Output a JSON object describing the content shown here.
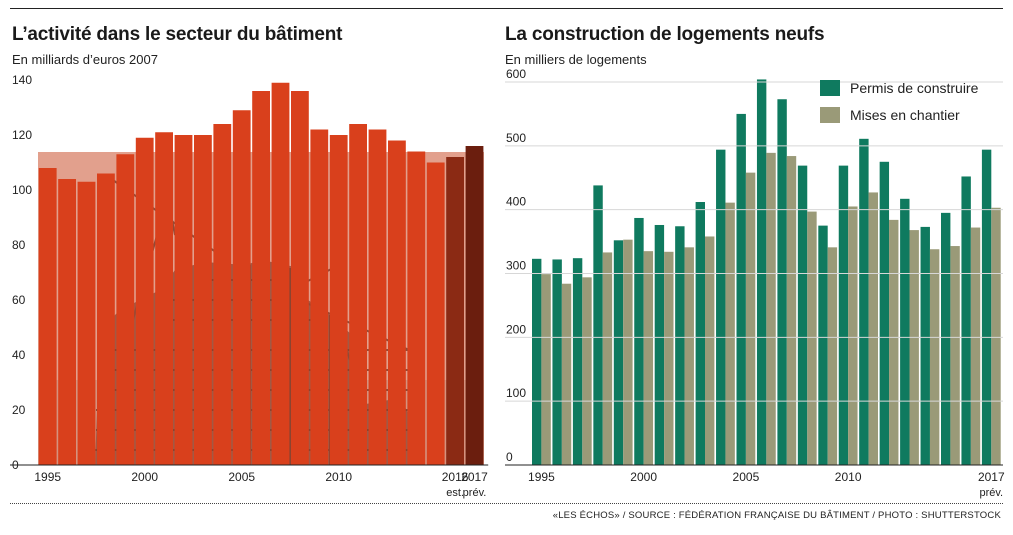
{
  "chart_data": [
    {
      "type": "bar",
      "title": "L’activité dans le secteur du bâtiment",
      "subtitle": "En milliards d’euros 2007",
      "x": [
        1995,
        1996,
        1997,
        1998,
        1999,
        2000,
        2001,
        2002,
        2003,
        2004,
        2005,
        2006,
        2007,
        2008,
        2009,
        2010,
        2011,
        2012,
        2013,
        2014,
        2015,
        2016,
        2017
      ],
      "values": [
        108,
        104,
        103,
        106,
        113,
        119,
        121,
        120,
        120,
        124,
        129,
        136,
        139,
        136,
        122,
        120,
        124,
        122,
        118,
        114,
        110,
        112,
        116
      ],
      "ylim": [
        0,
        140
      ],
      "yticks": [
        0,
        20,
        40,
        60,
        80,
        100,
        120,
        140
      ],
      "xtick_labels": [
        {
          "x": 1995,
          "label": "1995"
        },
        {
          "x": 2000,
          "label": "2000"
        },
        {
          "x": 2005,
          "label": "2005"
        },
        {
          "x": 2010,
          "label": "2010"
        },
        {
          "x": 2016,
          "label": "2016",
          "sub": "est."
        },
        {
          "x": 2017,
          "label": "2017",
          "sub": "prév."
        }
      ],
      "colors": {
        "normal": "#d9401c",
        "estimate": "#8b2a14",
        "forecast": "#6b1e0e"
      },
      "background_photo": "building-under-construction-cranes"
    },
    {
      "type": "bar",
      "title": "La construction de logements neufs",
      "subtitle": "En milliers de logements",
      "x": [
        1995,
        1996,
        1997,
        1998,
        1999,
        2000,
        2001,
        2002,
        2003,
        2004,
        2005,
        2006,
        2007,
        2008,
        2009,
        2010,
        2011,
        2012,
        2013,
        2014,
        2015,
        2016,
        2017
      ],
      "series": [
        {
          "name": "Permis de construire",
          "color": "#0f7a5f",
          "values": [
            323,
            322,
            324,
            438,
            352,
            387,
            376,
            374,
            412,
            494,
            550,
            604,
            573,
            469,
            375,
            469,
            511,
            475,
            417,
            373,
            395,
            452,
            494
          ]
        },
        {
          "name": "Mises en chantier",
          "color": "#9a9a78",
          "values": [
            299,
            284,
            294,
            333,
            353,
            335,
            334,
            341,
            358,
            411,
            458,
            489,
            484,
            397,
            341,
            405,
            427,
            384,
            368,
            338,
            343,
            372,
            403
          ]
        }
      ],
      "ylim": [
        0,
        600
      ],
      "yticks": [
        0,
        100,
        200,
        300,
        400,
        500,
        600
      ],
      "xtick_labels": [
        {
          "x": 1995,
          "label": "1995"
        },
        {
          "x": 2000,
          "label": "2000"
        },
        {
          "x": 2005,
          "label": "2005"
        },
        {
          "x": 2010,
          "label": "2010"
        },
        {
          "x": 2017,
          "label": "2017",
          "sub": "prév."
        }
      ],
      "legend_position": "top-right"
    }
  ],
  "footer": {
    "source": "«LES ÉCHOS» / SOURCE : FÉDÉRATION FRANÇAISE DU BÂTIMENT / PHOTO : SHUTTERSTOCK"
  }
}
